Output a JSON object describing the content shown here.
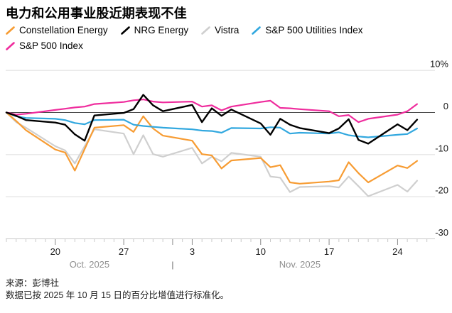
{
  "header": {
    "title": "电力和公用事业股近期表现不佳"
  },
  "chart_data": {
    "type": "line",
    "title": "电力和公用事业股近期表现不佳",
    "x_dates_2025": [
      "10-15",
      "10-16",
      "10-17",
      "10-20",
      "10-21",
      "10-22",
      "10-23",
      "10-24",
      "10-27",
      "10-28",
      "10-29",
      "10-30",
      "10-31",
      "11-03",
      "11-04",
      "11-05",
      "11-06",
      "11-07",
      "11-10",
      "11-11",
      "11-12",
      "11-13",
      "11-14",
      "11-17",
      "11-18",
      "11-19",
      "11-20",
      "11-21",
      "11-24",
      "11-25",
      "11-26"
    ],
    "series": [
      {
        "name": "Constellation Energy",
        "color": "#F79C33",
        "values": [
          0,
          -2,
          -4.2,
          -8.8,
          -9.5,
          -13.8,
          -8.7,
          -3.6,
          -3,
          -4.6,
          -0.9,
          -3.8,
          -5.5,
          -6.7,
          -9.9,
          -10.2,
          -13.3,
          -11.4,
          -10.8,
          -13,
          -12.5,
          -16.6,
          -16.9,
          -16.4,
          -16.1,
          -11.8,
          -14.4,
          -16.6,
          -12.6,
          -13.2,
          -11.5
        ]
      },
      {
        "name": "NRG Energy",
        "color": "#000000",
        "values": [
          0,
          -0.8,
          -1.8,
          -2.4,
          -2.9,
          -5.2,
          -6.7,
          -0.7,
          -0.1,
          0.8,
          4.2,
          1.7,
          0.3,
          1.8,
          -2.3,
          1,
          -0.8,
          0.7,
          -2.6,
          -5.3,
          -1.5,
          -2.9,
          -3.7,
          -4.9,
          -3.8,
          -1.6,
          -6.5,
          -7.4,
          -2.8,
          -4.2,
          -1.7
        ]
      },
      {
        "name": "Vistra",
        "color": "#CFCFCF",
        "values": [
          0,
          -2.3,
          -3.6,
          -8,
          -9,
          -12.1,
          -8,
          -4,
          -5,
          -9.9,
          -5.4,
          -9.9,
          -10.5,
          -8.4,
          -12.1,
          -10.5,
          -11.6,
          -9.6,
          -10.5,
          -15.2,
          -15.5,
          -18.9,
          -17.7,
          -17.5,
          -17.8,
          -15.2,
          -17.5,
          -19.9,
          -17.2,
          -18.8,
          -16.2
        ]
      },
      {
        "name": "S&P 500 Utilities Index",
        "color": "#32A8DF",
        "values": [
          0,
          -0.9,
          -1.3,
          -1.5,
          -1.8,
          -2.5,
          -2.8,
          -1.8,
          -1.7,
          -2.9,
          -3.2,
          -3.4,
          -3.6,
          -4,
          -4.3,
          -4.4,
          -4.8,
          -3.7,
          -3.8,
          -3.5,
          -3.6,
          -5,
          -4.8,
          -5,
          -4.7,
          -5.4,
          -5.7,
          -5.9,
          -5.3,
          -5.1,
          -3.8
        ]
      },
      {
        "name": "S&P 500 Index",
        "color": "#EF2C9D",
        "values": [
          0,
          -0.5,
          -0.3,
          0.6,
          0.9,
          1.2,
          1.4,
          2,
          2.5,
          2.9,
          3.1,
          2.6,
          2.4,
          2.6,
          1.4,
          1.7,
          0.5,
          1.4,
          2.5,
          2.8,
          1.1,
          1,
          0.8,
          0.3,
          -0.9,
          -0.6,
          -2.3,
          -1.5,
          -0.5,
          0.3,
          2
        ]
      }
    ],
    "y_axis": {
      "range": [
        -30,
        10
      ],
      "ticks": [
        {
          "v": 10,
          "label": "10%"
        },
        {
          "v": 0,
          "label": "0"
        },
        {
          "v": -10,
          "label": "-10"
        },
        {
          "v": -20,
          "label": "-20"
        },
        {
          "v": -30,
          "label": "-30"
        }
      ]
    },
    "x_axis": {
      "tick_labels": [
        "20",
        "27",
        "3",
        "10",
        "17",
        "24"
      ],
      "months": [
        {
          "label": "Oct. 2025"
        },
        {
          "label": "Nov. 2025"
        }
      ],
      "separator": "|",
      "minor_ticks": "daily",
      "grid": "horizontal-only"
    },
    "legend_position": "top"
  },
  "footer": {
    "source": "来源：彭博社",
    "note": "数据已按 2025 年 10 月 15 日的百分比增值进行标准化。"
  }
}
